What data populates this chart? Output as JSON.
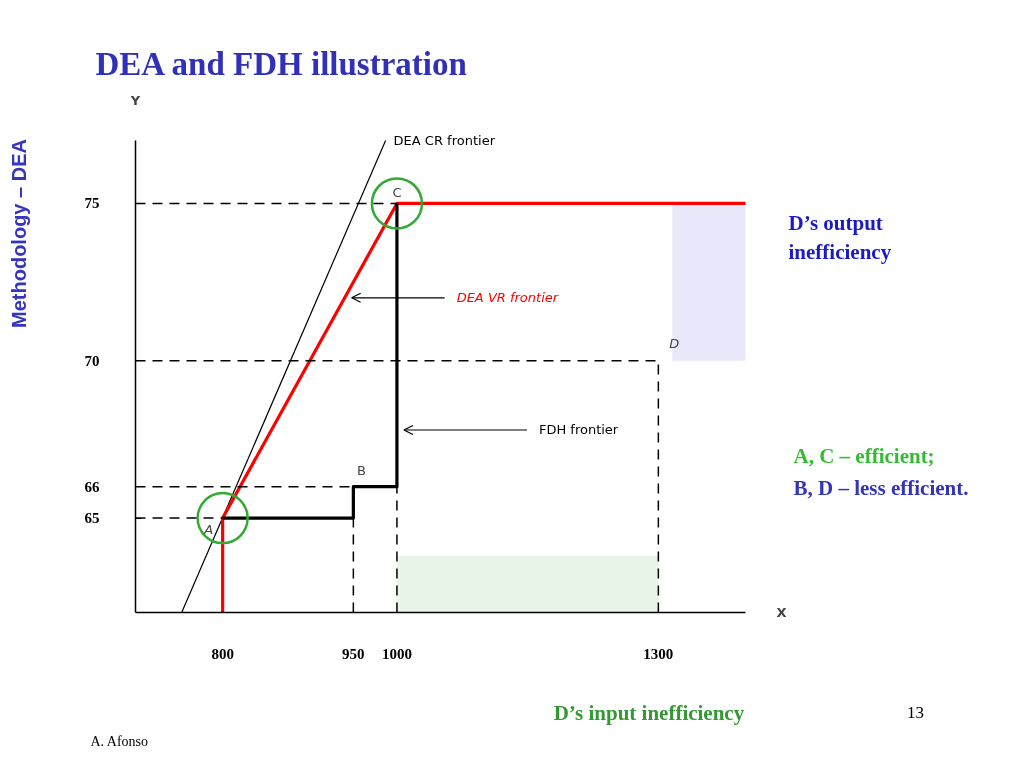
{
  "chart_data": {
    "type": "line",
    "title": "DEA and FDH illustration",
    "xlabel": "X",
    "ylabel": "Y",
    "xlim": [
      700,
      1400
    ],
    "xticks": [
      800,
      950,
      1000,
      1300
    ],
    "ylim": [
      62,
      77
    ],
    "yticks": [
      65,
      66,
      70,
      75
    ],
    "series": [
      {
        "name": "DEA CR frontier",
        "color": "#000000",
        "x": [
          753,
          987
        ],
        "values": [
          62,
          77
        ]
      },
      {
        "name": "DEA VR frontier",
        "color": "#ff0000",
        "x": [
          800,
          800,
          1000,
          1400
        ],
        "values": [
          62,
          65,
          75,
          75
        ]
      },
      {
        "name": "FDH frontier",
        "color": "#000000",
        "x": [
          800,
          950,
          950,
          1000,
          1000
        ],
        "values": [
          65,
          65,
          66,
          66,
          75
        ]
      },
      {
        "type": "scatter",
        "color": "#33aa33",
        "marker": "circle",
        "x": [
          800,
          1000
        ],
        "values": [
          65,
          75
        ]
      },
      {
        "color": "#000000",
        "line_style": "dashed",
        "x": [
          700,
          1000
        ],
        "values": [
          75,
          75
        ]
      },
      {
        "color": "#000000",
        "line_style": "dashed",
        "x": [
          700,
          1300
        ],
        "values": [
          70,
          70
        ]
      },
      {
        "color": "#000000",
        "line_style": "dashed",
        "x": [
          700,
          950
        ],
        "values": [
          66,
          66
        ]
      },
      {
        "color": "#000000",
        "line_style": "dashed",
        "x": [
          700,
          800
        ],
        "values": [
          65,
          65
        ]
      },
      {
        "color": "#000000",
        "line_style": "dashed",
        "x": [
          950,
          950
        ],
        "values": [
          62,
          66
        ]
      },
      {
        "color": "#000000",
        "line_style": "dashed",
        "x": [
          1000,
          1000
        ],
        "values": [
          62,
          66
        ]
      },
      {
        "color": "#000000",
        "line_style": "dashed",
        "x": [
          1300,
          1300
        ],
        "values": [
          62,
          70
        ]
      }
    ],
    "bands": [
      {
        "axis": "y",
        "from": 70,
        "to": 75,
        "label": "D’s output inefficiency",
        "color": "#1a1acc"
      },
      {
        "axis": "x",
        "from": 1000,
        "to": 1300,
        "label": "D’s input inefficiency",
        "color": "#339933"
      }
    ],
    "annotations": [
      {
        "text": "A",
        "x": 800,
        "y": 65
      },
      {
        "text": "B",
        "x": 950,
        "y": 66
      },
      {
        "text": "C",
        "x": 1000,
        "y": 75
      },
      {
        "text": "D",
        "x": 1300,
        "y": 70
      },
      "A, C – efficient;",
      "B, D – less efficient.",
      "Methodology – DEA",
      "13",
      "A. Afonso"
    ]
  }
}
